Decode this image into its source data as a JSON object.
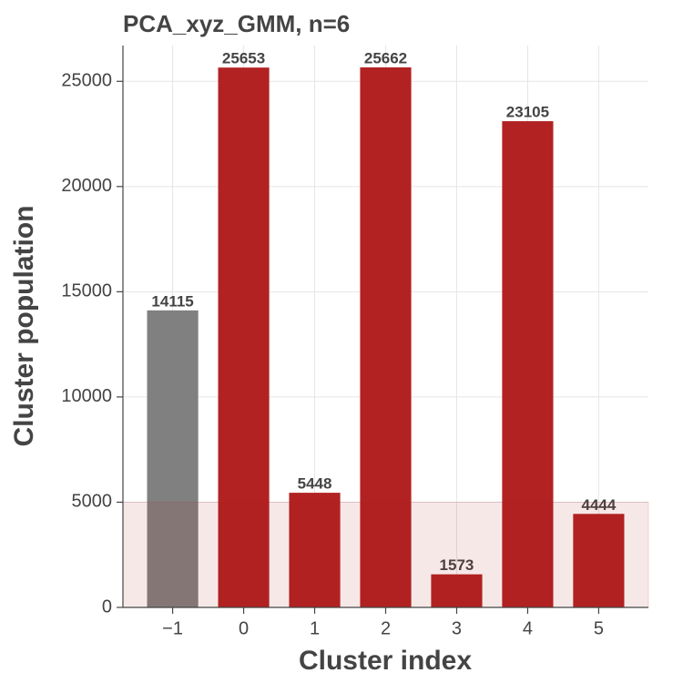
{
  "chart_data": {
    "type": "bar",
    "title": "PCA_xyz_GMM, n=6",
    "x_label": "Cluster index",
    "y_label": "Cluster population",
    "x": [
      -1,
      0,
      1,
      2,
      3,
      4,
      5
    ],
    "values": [
      14115,
      25653,
      5448,
      25662,
      1573,
      23105,
      4444
    ],
    "colors": [
      "#808080",
      "#b22222",
      "#b22222",
      "#b22222",
      "#b22222",
      "#b22222",
      "#b22222"
    ],
    "xlim": [
      -1.7,
      5.7
    ],
    "xticks": [
      {
        "value": -1,
        "label": "−1"
      },
      0,
      1,
      2,
      3,
      4,
      5
    ],
    "ylim": [
      0,
      26700
    ],
    "yticks": [
      0,
      5000,
      10000,
      15000,
      20000,
      25000
    ],
    "band": {
      "from": 0,
      "to": 5000,
      "color": "#b22222"
    },
    "grid": true
  }
}
